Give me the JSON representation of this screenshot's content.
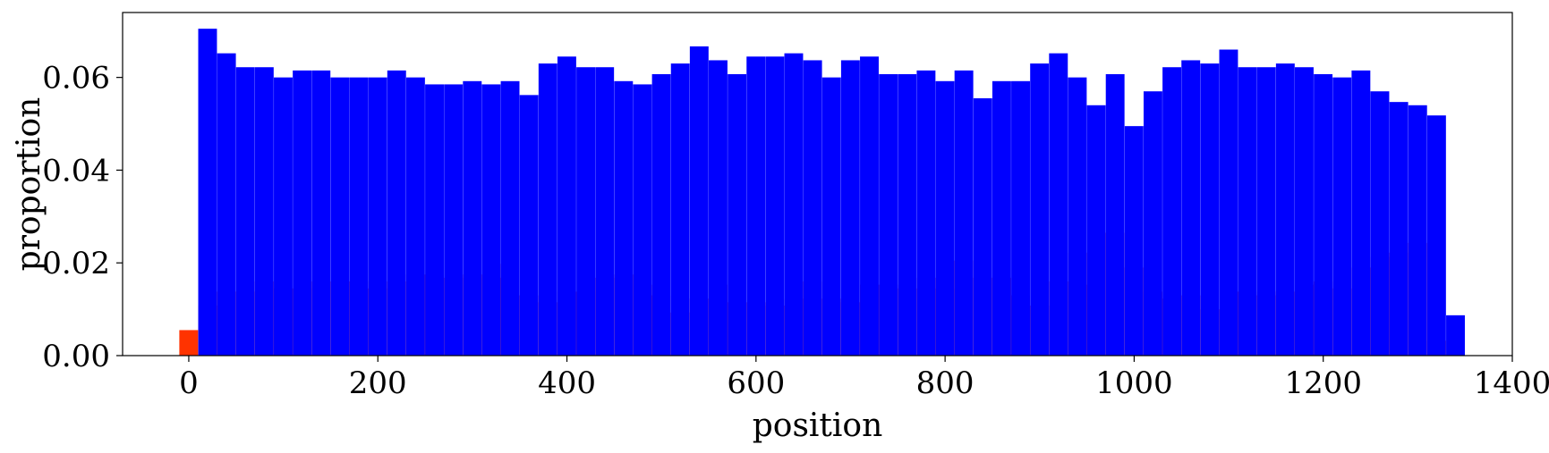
{
  "chart_data": {
    "type": "bar",
    "xlabel": "position",
    "ylabel": "proportion",
    "xlim": [
      -70,
      1400
    ],
    "ylim": [
      0,
      0.074
    ],
    "xticks": [
      0,
      200,
      400,
      600,
      800,
      1000,
      1200,
      1400
    ],
    "yticks": [
      0.0,
      0.02,
      0.04,
      0.06
    ],
    "ytick_labels": [
      "0.00",
      "0.02",
      "0.04",
      "0.06"
    ],
    "bin_width": 20,
    "grid": false,
    "legend": null,
    "series": [
      {
        "color": "#ff3300",
        "x": [
          0,
          20,
          40,
          60,
          80,
          100,
          120,
          140,
          160,
          180,
          200,
          220,
          240,
          260,
          280,
          300,
          320,
          340,
          360,
          380,
          400,
          420,
          440,
          460,
          480,
          500,
          520,
          540,
          560,
          580,
          600,
          620,
          640,
          660,
          680,
          700,
          720,
          740,
          760,
          780,
          800,
          820,
          840,
          860,
          880,
          900,
          920,
          940,
          960,
          980,
          1000,
          1020,
          1040,
          1060,
          1080,
          1100,
          1120,
          1140,
          1160,
          1180,
          1200,
          1220,
          1240,
          1260,
          1280,
          1300,
          1320
        ],
        "values": [
          0.0055,
          0.0108,
          0.0138,
          0.0138,
          0.016,
          0.0145,
          0.0145,
          0.016,
          0.016,
          0.016,
          0.0145,
          0.016,
          0.0175,
          0.0175,
          0.0168,
          0.0175,
          0.0168,
          0.0198,
          0.013,
          0.0115,
          0.0138,
          0.0138,
          0.0168,
          0.0175,
          0.0153,
          0.013,
          0.0093,
          0.0123,
          0.0153,
          0.0115,
          0.0115,
          0.0108,
          0.0123,
          0.016,
          0.0123,
          0.0115,
          0.0153,
          0.0153,
          0.0145,
          0.0168,
          0.0145,
          0.0205,
          0.0168,
          0.0168,
          0.013,
          0.0108,
          0.016,
          0.0222,
          0.0153,
          0.0265,
          0.019,
          0.0138,
          0.0123,
          0.013,
          0.01,
          0.0138,
          0.0138,
          0.013,
          0.0138,
          0.0153,
          0.016,
          0.0145,
          0.019,
          0.0213,
          0.0222,
          0.0243,
          0.0032
        ]
      },
      {
        "color": "#0000ff",
        "x": [
          20,
          40,
          60,
          80,
          100,
          120,
          140,
          160,
          180,
          200,
          220,
          240,
          260,
          280,
          300,
          320,
          340,
          360,
          380,
          400,
          420,
          440,
          460,
          480,
          500,
          520,
          540,
          560,
          580,
          600,
          620,
          640,
          660,
          680,
          700,
          720,
          740,
          760,
          780,
          800,
          820,
          840,
          860,
          880,
          900,
          920,
          940,
          960,
          980,
          1000,
          1020,
          1040,
          1060,
          1080,
          1100,
          1120,
          1140,
          1160,
          1180,
          1200,
          1220,
          1240,
          1260,
          1280,
          1300,
          1320,
          1340
        ],
        "values": [
          0.0705,
          0.0652,
          0.0622,
          0.0622,
          0.06,
          0.0615,
          0.0615,
          0.06,
          0.06,
          0.06,
          0.0615,
          0.06,
          0.0585,
          0.0585,
          0.0592,
          0.0585,
          0.0592,
          0.0562,
          0.063,
          0.0645,
          0.0622,
          0.0622,
          0.0592,
          0.0585,
          0.0607,
          0.063,
          0.0667,
          0.0637,
          0.0607,
          0.0645,
          0.0645,
          0.0652,
          0.0637,
          0.06,
          0.0637,
          0.0645,
          0.0607,
          0.0607,
          0.0615,
          0.0592,
          0.0615,
          0.0555,
          0.0592,
          0.0592,
          0.063,
          0.0652,
          0.06,
          0.054,
          0.0607,
          0.0495,
          0.057,
          0.0622,
          0.0637,
          0.063,
          0.066,
          0.0622,
          0.0622,
          0.063,
          0.0622,
          0.0607,
          0.06,
          0.0615,
          0.057,
          0.0547,
          0.054,
          0.0518,
          0.0087
        ]
      }
    ]
  }
}
